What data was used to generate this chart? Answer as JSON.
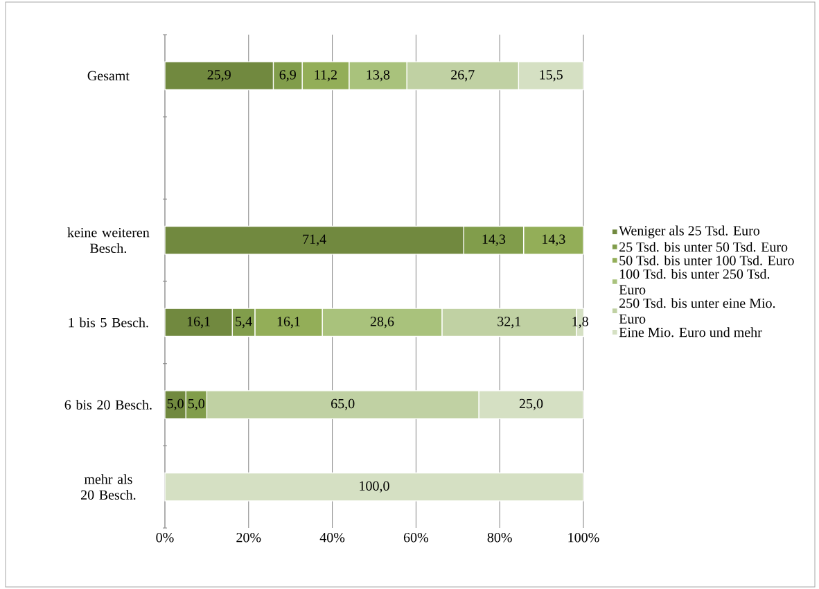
{
  "chart_data": {
    "type": "bar",
    "orientation": "horizontal",
    "stacked": true,
    "categories": [
      "Gesamt",
      null,
      "keine weiteren Besch.",
      "1 bis 5 Besch.",
      "6 bis 20 Besch.",
      "mehr als 20 Besch."
    ],
    "series": [
      {
        "name": "Weniger als 25 Tsd. Euro",
        "color": "#71893f",
        "values": [
          25.9,
          null,
          71.4,
          16.1,
          5.0,
          null
        ],
        "value_labels": [
          "25,9",
          null,
          "71,4",
          "16,1",
          "5,0",
          null
        ]
      },
      {
        "name": "25 Tsd. bis unter 50 Tsd. Euro",
        "color": "#819d4b",
        "values": [
          6.9,
          null,
          14.3,
          5.4,
          5.0,
          null
        ],
        "value_labels": [
          "6,9",
          null,
          "14,3",
          "5,4",
          "5,0",
          null
        ]
      },
      {
        "name": "50 Tsd. bis unter 100 Tsd. Euro",
        "color": "#93ae58",
        "values": [
          11.2,
          null,
          14.3,
          16.1,
          null,
          null
        ],
        "value_labels": [
          "11,2",
          null,
          "14,3",
          "16,1",
          null,
          null
        ]
      },
      {
        "name": "100 Tsd. bis unter 250 Tsd. Euro",
        "color": "#a9c27c",
        "values": [
          13.8,
          null,
          null,
          28.6,
          null,
          null
        ],
        "value_labels": [
          "13,8",
          null,
          null,
          "28,6",
          null,
          null
        ]
      },
      {
        "name": "250 Tsd. bis unter eine Mio. Euro",
        "color": "#c0d1a3",
        "values": [
          26.7,
          null,
          null,
          32.1,
          65.0,
          null
        ],
        "value_labels": [
          "26,7",
          null,
          null,
          "32,1",
          "65,0",
          null
        ]
      },
      {
        "name": "Eine Mio. Euro und mehr",
        "color": "#d5e0c3",
        "values": [
          15.5,
          null,
          null,
          1.8,
          25.0,
          100.0
        ],
        "value_labels": [
          "15,5",
          null,
          null,
          "1,8",
          "25,0",
          "100,0"
        ]
      }
    ],
    "xlim": [
      0,
      100
    ],
    "xticks": [
      {
        "value": 0,
        "label": "0%"
      },
      {
        "value": 20,
        "label": "20%"
      },
      {
        "value": 40,
        "label": "40%"
      },
      {
        "value": 60,
        "label": "60%"
      },
      {
        "value": 80,
        "label": "80%"
      },
      {
        "value": 100,
        "label": "100%"
      }
    ],
    "grid": "x",
    "legend": "right"
  }
}
